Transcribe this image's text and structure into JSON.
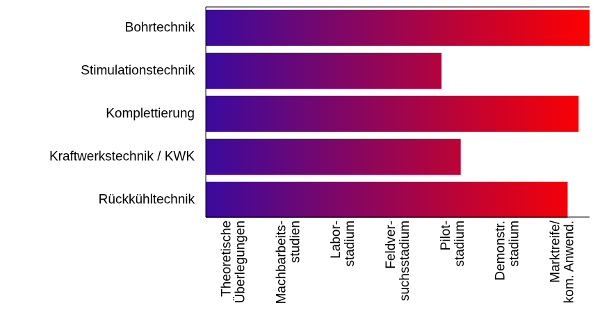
{
  "chart_data": {
    "type": "bar",
    "orientation": "horizontal",
    "title": "",
    "xlabel": "",
    "ylabel": "",
    "categories": [
      "Bohrtechnik",
      "Stimulationstechnik",
      "Komplettierung",
      "Kraftwerkstechnik / KWK",
      "Rückkühltechnik"
    ],
    "values": [
      7.0,
      4.3,
      6.8,
      4.65,
      6.6
    ],
    "xlim": [
      0,
      7
    ],
    "x_ticks": [
      0.5,
      1.5,
      2.5,
      3.5,
      4.5,
      5.5,
      6.5
    ],
    "x_tick_labels": [
      [
        "Theoretische",
        "Überlegungen"
      ],
      [
        "Machbarbeits-",
        "studien"
      ],
      [
        "Labor-",
        "stadium"
      ],
      [
        "Feldver-",
        "suchsstadium"
      ],
      [
        "Pilot-",
        "stadium"
      ],
      [
        "Demonstr.",
        "stadium"
      ],
      [
        "Marktreife/",
        "kom. Anwend."
      ]
    ],
    "grid": false,
    "legend": "none",
    "bar_gradient": {
      "start": "#3a0a9e",
      "end": "#ff0000"
    }
  }
}
